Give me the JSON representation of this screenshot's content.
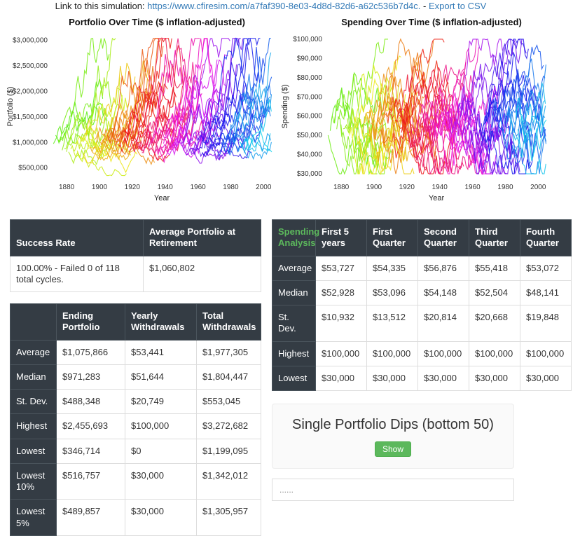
{
  "colors": {
    "link": "#337ab7",
    "header_bg": "#343c44",
    "header_border": "#4a545c",
    "green": "#5cb85c",
    "green_border": "#4cae4c"
  },
  "top_link": {
    "prefix": "Link to this simulation: ",
    "url": "https://www.cfiresim.com/a7faf390-8e03-4d8d-82d6-a62c536b7d4c.",
    "separator": " - ",
    "export_label": "Export to CSV"
  },
  "chart_data": [
    {
      "type": "line",
      "title": "Portfolio Over Time ($ inflation-adjusted)",
      "xlabel": "Year",
      "ylabel": "Portfolio ($)",
      "xlim": [
        1871,
        2005
      ],
      "ylim": [
        290000,
        3120000
      ],
      "xticks": [
        1880,
        1900,
        1920,
        1940,
        1960,
        1980,
        2000
      ],
      "yticks": [
        500000,
        1000000,
        1500000,
        2000000,
        2500000,
        3000000
      ],
      "ytick_labels": [
        "$500,000",
        "$1,000,000",
        "$1,500,000",
        "$2,000,000",
        "$2,500,000",
        "$3,000,000"
      ],
      "legend": false,
      "grid": false,
      "style": "spaghetti-rainbow-cycles",
      "n_series": 90,
      "cycle_years": 30,
      "seed": 11,
      "start_range": [
        780000,
        1150000
      ],
      "drift": 0.028,
      "volatility": 0.17,
      "clamp": [
        350000,
        3040000
      ]
    },
    {
      "type": "line",
      "title": "Spending Over Time ($ inflation-adjusted)",
      "xlabel": "Year",
      "ylabel": "Spending ($)",
      "xlim": [
        1871,
        2005
      ],
      "ylim": [
        27500,
        102500
      ],
      "xticks": [
        1880,
        1900,
        1920,
        1940,
        1960,
        1980,
        2000
      ],
      "yticks": [
        30000,
        40000,
        50000,
        60000,
        70000,
        80000,
        90000,
        100000
      ],
      "ytick_labels": [
        "$30,000",
        "$40,000",
        "$50,000",
        "$60,000",
        "$70,000",
        "$80,000",
        "$90,000",
        "$100,000"
      ],
      "legend": false,
      "grid": false,
      "style": "spaghetti-rainbow-cycles",
      "n_series": 90,
      "cycle_years": 30,
      "seed": 29,
      "start_range": [
        48000,
        62000
      ],
      "step": 9000,
      "clamp": [
        30000,
        100000
      ]
    }
  ],
  "success_table": {
    "headers": [
      "Success Rate",
      "Average Portfolio at Retirement"
    ],
    "row": [
      "100.00% - Failed 0 of 118 total cycles.",
      "$1,060,802"
    ]
  },
  "stats_table": {
    "headers": [
      "",
      "Ending Portfolio",
      "Yearly Withdrawals",
      "Total Withdrawals"
    ],
    "rows": [
      {
        "label": "Average",
        "values": [
          "$1,075,866",
          "$53,441",
          "$1,977,305"
        ]
      },
      {
        "label": "Median",
        "values": [
          "$971,283",
          "$51,644",
          "$1,804,447"
        ]
      },
      {
        "label": "St. Dev.",
        "values": [
          "$488,348",
          "$20,749",
          "$553,045"
        ]
      },
      {
        "label": "Highest",
        "values": [
          "$2,455,693",
          "$100,000",
          "$3,272,682"
        ]
      },
      {
        "label": "Lowest",
        "values": [
          "$346,714",
          "$0",
          "$1,199,095"
        ]
      },
      {
        "label": "Lowest 10%",
        "values": [
          "$516,757",
          "$30,000",
          "$1,342,012"
        ]
      },
      {
        "label": "Lowest 5%",
        "values": [
          "$489,857",
          "$30,000",
          "$1,305,957"
        ]
      }
    ]
  },
  "spending_table": {
    "title": "Spending Analysis",
    "headers": [
      "First 5 years",
      "First Quarter",
      "Second Quarter",
      "Third Quarter",
      "Fourth Quarter"
    ],
    "rows": [
      {
        "label": "Average",
        "values": [
          "$53,727",
          "$54,335",
          "$56,876",
          "$55,418",
          "$53,072"
        ]
      },
      {
        "label": "Median",
        "values": [
          "$52,928",
          "$53,096",
          "$54,148",
          "$52,504",
          "$48,141"
        ]
      },
      {
        "label": "St. Dev.",
        "values": [
          "$10,932",
          "$13,512",
          "$20,814",
          "$20,668",
          "$19,848"
        ]
      },
      {
        "label": "Highest",
        "values": [
          "$100,000",
          "$100,000",
          "$100,000",
          "$100,000",
          "$100,000"
        ]
      },
      {
        "label": "Lowest",
        "values": [
          "$30,000",
          "$30,000",
          "$30,000",
          "$30,000",
          "$30,000"
        ]
      }
    ]
  },
  "dips_panel": {
    "title": "Single Portfolio Dips (bottom 50)",
    "show_button_label": "Show",
    "placeholder_text": "......"
  }
}
